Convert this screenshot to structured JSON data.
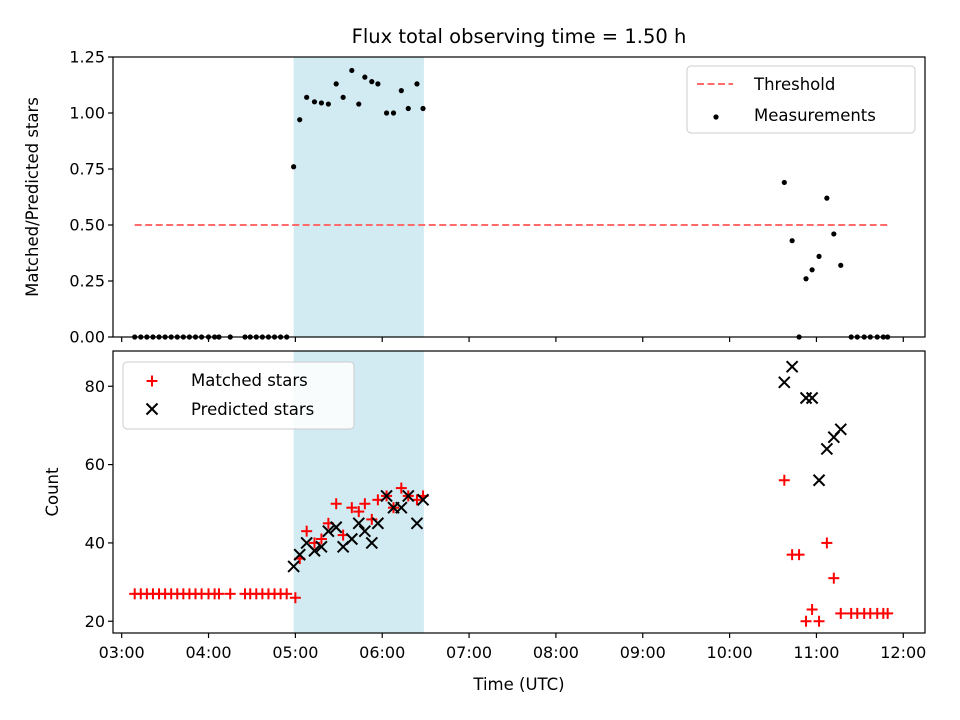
{
  "chart_data": [
    {
      "type": "scatter",
      "title": "Flux total observing time = 1.50 h",
      "xlabel": "",
      "ylabel": "Matched/Predicted stars",
      "xlim": [
        2.9,
        12.25
      ],
      "ylim": [
        0,
        1.25
      ],
      "yticks": [
        0,
        0.25,
        0.5,
        0.75,
        1.0,
        1.25
      ],
      "ytick_labels": [
        "0.00",
        "0.25",
        "0.50",
        "0.75",
        "1.00",
        "1.25"
      ],
      "xticks": [
        3,
        4,
        5,
        6,
        7,
        8,
        9,
        10,
        11,
        12
      ],
      "shaded_region": {
        "x_start": 4.98,
        "x_end": 6.48,
        "color": "#add8e6"
      },
      "legend": {
        "placement": "top-right",
        "entries": [
          "Threshold",
          "Measurements"
        ]
      },
      "series": [
        {
          "name": "Threshold",
          "style": "dashed-line",
          "color": "#ff6b6b",
          "x": [
            3.15,
            11.82
          ],
          "y": [
            0.5,
            0.5
          ]
        },
        {
          "name": "Measurements",
          "style": "dots",
          "color": "#000000",
          "x": [
            3.15,
            3.22,
            3.29,
            3.36,
            3.43,
            3.5,
            3.57,
            3.64,
            3.71,
            3.78,
            3.85,
            3.92,
            4.0,
            4.07,
            4.12,
            4.25,
            4.42,
            4.48,
            4.55,
            4.62,
            4.69,
            4.76,
            4.83,
            4.9,
            4.98,
            5.05,
            5.13,
            5.22,
            5.3,
            5.38,
            5.47,
            5.55,
            5.65,
            5.73,
            5.8,
            5.88,
            5.95,
            6.05,
            6.13,
            6.22,
            6.3,
            6.4,
            6.47,
            10.63,
            10.72,
            10.8,
            10.88,
            10.95,
            11.03,
            11.12,
            11.2,
            11.28,
            11.4,
            11.47,
            11.55,
            11.62,
            11.7,
            11.77,
            11.82
          ],
          "y": [
            0,
            0,
            0,
            0,
            0,
            0,
            0,
            0,
            0,
            0,
            0,
            0,
            0,
            0,
            0,
            0,
            0,
            0,
            0,
            0,
            0,
            0,
            0,
            0,
            0.76,
            0.97,
            1.07,
            1.05,
            1.045,
            1.04,
            1.13,
            1.07,
            1.19,
            1.04,
            1.16,
            1.14,
            1.13,
            1.0,
            1.0,
            1.1,
            1.02,
            1.13,
            1.02,
            0.69,
            0.43,
            0.0,
            0.26,
            0.3,
            0.36,
            0.62,
            0.46,
            0.32,
            0,
            0,
            0,
            0,
            0,
            0,
            0
          ]
        }
      ]
    },
    {
      "type": "scatter",
      "title": "",
      "xlabel": "Time (UTC)",
      "ylabel": "Count",
      "xlim": [
        2.9,
        12.25
      ],
      "ylim": [
        17,
        89
      ],
      "yticks": [
        20,
        40,
        60,
        80
      ],
      "ytick_labels": [
        "20",
        "40",
        "60",
        "80"
      ],
      "xticks": [
        3,
        4,
        5,
        6,
        7,
        8,
        9,
        10,
        11,
        12
      ],
      "xtick_labels": [
        "03:00",
        "04:00",
        "05:00",
        "06:00",
        "07:00",
        "08:00",
        "09:00",
        "10:00",
        "11:00",
        "12:00"
      ],
      "shaded_region": {
        "x_start": 4.98,
        "x_end": 6.48,
        "color": "#add8e6"
      },
      "legend": {
        "placement": "top-left",
        "entries": [
          "Matched stars",
          "Predicted stars"
        ]
      },
      "series": [
        {
          "name": "Matched stars",
          "style": "plus",
          "color": "#ff0000",
          "x": [
            3.15,
            3.22,
            3.29,
            3.36,
            3.43,
            3.5,
            3.57,
            3.64,
            3.71,
            3.78,
            3.85,
            3.92,
            4.0,
            4.07,
            4.12,
            4.25,
            4.42,
            4.48,
            4.55,
            4.62,
            4.69,
            4.76,
            4.83,
            4.9,
            5.0,
            5.05,
            5.13,
            5.22,
            5.3,
            5.38,
            5.47,
            5.55,
            5.65,
            5.73,
            5.8,
            5.88,
            5.95,
            6.05,
            6.13,
            6.22,
            6.3,
            6.4,
            6.47,
            10.63,
            10.72,
            10.8,
            10.88,
            10.95,
            11.03,
            11.12,
            11.2,
            11.28,
            11.4,
            11.47,
            11.55,
            11.62,
            11.7,
            11.77,
            11.82
          ],
          "y": [
            27,
            27,
            27,
            27,
            27,
            27,
            27,
            27,
            27,
            27,
            27,
            27,
            27,
            27,
            27,
            27,
            27,
            27,
            27,
            27,
            27,
            27,
            27,
            27,
            26,
            36,
            43,
            40,
            41,
            45,
            50,
            42,
            49,
            48,
            50,
            46,
            51,
            52,
            49,
            54,
            52,
            51,
            52,
            56,
            37,
            37,
            20,
            23,
            20,
            40,
            31,
            22,
            22,
            22,
            22,
            22,
            22,
            22,
            22
          ]
        },
        {
          "name": "Predicted stars",
          "style": "x",
          "color": "#000000",
          "x": [
            4.98,
            5.05,
            5.13,
            5.22,
            5.3,
            5.38,
            5.47,
            5.55,
            5.65,
            5.73,
            5.8,
            5.88,
            5.95,
            6.05,
            6.13,
            6.22,
            6.3,
            6.4,
            6.47,
            10.63,
            10.72,
            10.88,
            10.95,
            11.03,
            11.12,
            11.2,
            11.28
          ],
          "y": [
            34,
            37,
            40,
            38,
            39,
            43,
            44,
            39,
            41,
            45,
            43,
            40,
            45,
            52,
            49,
            49,
            52,
            45,
            51,
            81,
            85,
            77,
            77,
            56,
            64,
            67,
            69
          ]
        }
      ]
    }
  ]
}
